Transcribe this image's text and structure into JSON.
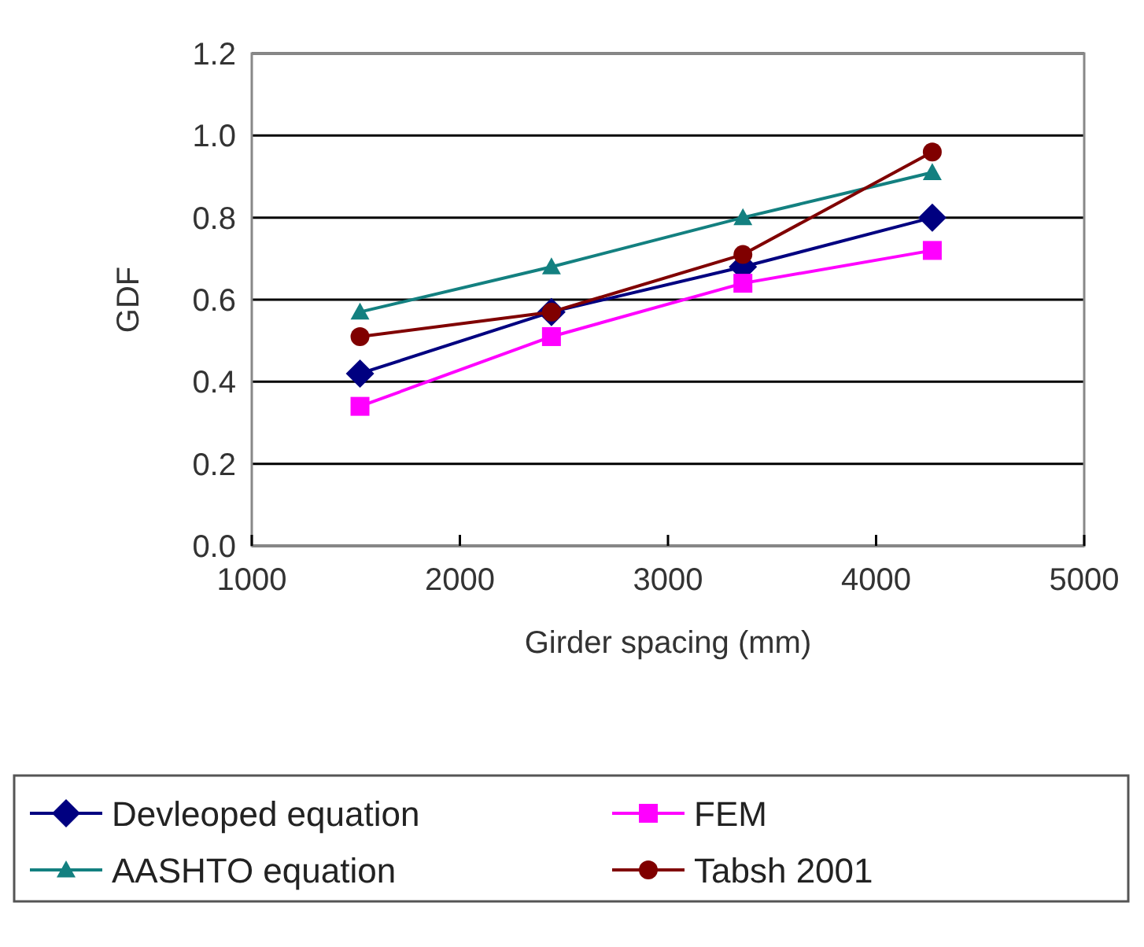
{
  "chart_data": {
    "type": "line",
    "xlabel": "Girder spacing (mm)",
    "ylabel": "GDF",
    "x": [
      1520,
      2440,
      3360,
      4270
    ],
    "xlim": [
      1000,
      5000
    ],
    "xticks": [
      1000,
      2000,
      3000,
      4000,
      5000
    ],
    "ylim": [
      0,
      1.2
    ],
    "yticks": [
      {
        "value": 0,
        "label": "0.0"
      },
      0.2,
      0.4,
      0.6,
      0.8,
      {
        "value": 1,
        "label": "1.0"
      },
      1.2
    ],
    "grid": "y",
    "legend": "bottom",
    "line_style": "solid",
    "series": [
      {
        "name": "Devleoped equation",
        "color": "#000080",
        "marker": "diamond",
        "values": [
          0.42,
          0.57,
          0.68,
          0.8
        ]
      },
      {
        "name": "FEM",
        "color": "#ff00ff",
        "marker": "square",
        "values": [
          0.34,
          0.51,
          0.64,
          0.72
        ]
      },
      {
        "name": "AASHTO equation",
        "color": "#138080",
        "marker": "triangle",
        "values": [
          0.57,
          0.68,
          0.8,
          0.91
        ]
      },
      {
        "name": "Tabsh 2001",
        "color": "#800000",
        "marker": "circle",
        "values": [
          0.51,
          0.57,
          0.71,
          0.96
        ]
      }
    ]
  }
}
